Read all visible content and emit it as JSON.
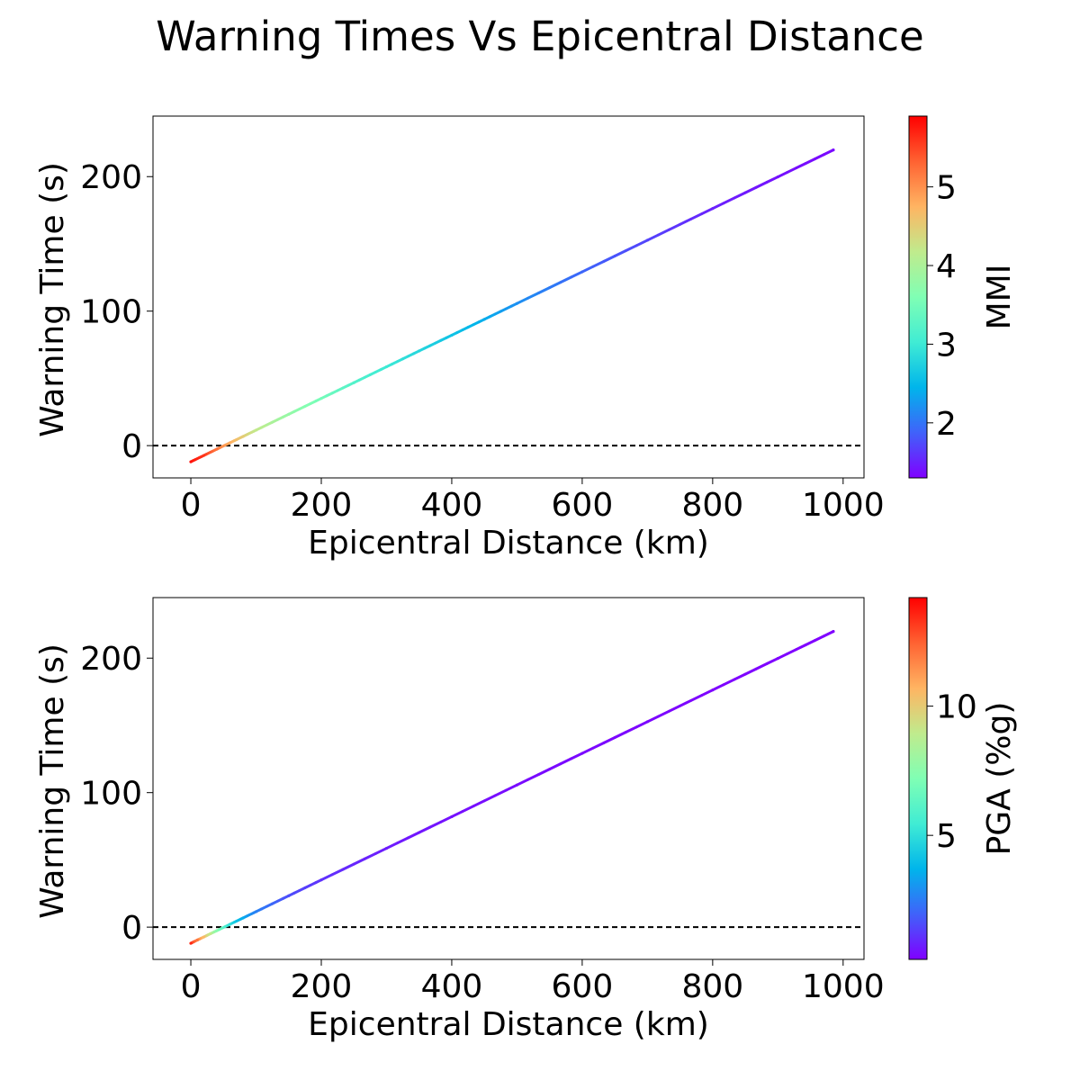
{
  "figure": {
    "title": "Warning Times Vs Epicentral Distance"
  },
  "colors": {
    "rainbow": [
      "#8000ff",
      "#4062fa",
      "#00b5eb",
      "#40ecd4",
      "#80ffb4",
      "#c0eb8d",
      "#ffb462",
      "#ff6232",
      "#ff0000"
    ],
    "reference_line": "#000000"
  },
  "chart_data": [
    {
      "type": "scatter",
      "title": "",
      "xlabel": "Epicentral Distance (km)",
      "ylabel": "Warning Time (s)",
      "xlim": [
        -58,
        1032
      ],
      "ylim": [
        -24,
        245
      ],
      "xticks": [
        0,
        200,
        400,
        600,
        800,
        1000
      ],
      "yticks": [
        0,
        100,
        200
      ],
      "reference_line": {
        "y": 0,
        "style": "dashed"
      },
      "colorbar": {
        "label": "MMI",
        "range": [
          1.3,
          5.9
        ],
        "ticks": [
          2,
          3,
          4,
          5
        ],
        "colormap": "rainbow"
      },
      "x": [
        0,
        20,
        40,
        60,
        80,
        100,
        150,
        200,
        250,
        300,
        350,
        400,
        450,
        500,
        600,
        700,
        800,
        900,
        985
      ],
      "y": [
        -12,
        -7.3,
        -2.6,
        2.1,
        6.8,
        11.5,
        23.3,
        35.1,
        46.8,
        58.6,
        70.4,
        82.1,
        93.9,
        105.7,
        129.2,
        152.7,
        176.3,
        199.8,
        219.8
      ],
      "color_values": [
        5.8,
        5.6,
        5.2,
        4.8,
        4.5,
        4.2,
        3.8,
        3.5,
        3.2,
        3.0,
        2.8,
        2.6,
        2.4,
        2.2,
        1.9,
        1.7,
        1.5,
        1.4,
        1.35
      ]
    },
    {
      "type": "scatter",
      "title": "",
      "xlabel": "Epicentral Distance (km)",
      "ylabel": "Warning Time (s)",
      "xlim": [
        -58,
        1032
      ],
      "ylim": [
        -24,
        245
      ],
      "xticks": [
        0,
        200,
        400,
        600,
        800,
        1000
      ],
      "yticks": [
        0,
        100,
        200
      ],
      "reference_line": {
        "y": 0,
        "style": "dashed"
      },
      "colorbar": {
        "label": "PGA (%g)",
        "range": [
          0.2,
          14.2
        ],
        "ticks": [
          5,
          10
        ],
        "colormap": "rainbow"
      },
      "x": [
        0,
        10,
        20,
        30,
        40,
        60,
        80,
        100,
        150,
        200,
        300,
        400,
        500,
        600,
        700,
        800,
        900,
        985
      ],
      "y": [
        -12,
        -9.6,
        -7.3,
        -4.9,
        -2.6,
        2.1,
        6.8,
        11.5,
        23.3,
        35.1,
        58.6,
        82.1,
        105.7,
        129.2,
        152.7,
        176.3,
        199.8,
        219.8
      ],
      "color_values": [
        13.5,
        12.0,
        10.5,
        9.0,
        7.5,
        5.0,
        3.5,
        2.6,
        1.6,
        1.1,
        0.7,
        0.5,
        0.4,
        0.35,
        0.3,
        0.25,
        0.22,
        0.2
      ]
    }
  ]
}
